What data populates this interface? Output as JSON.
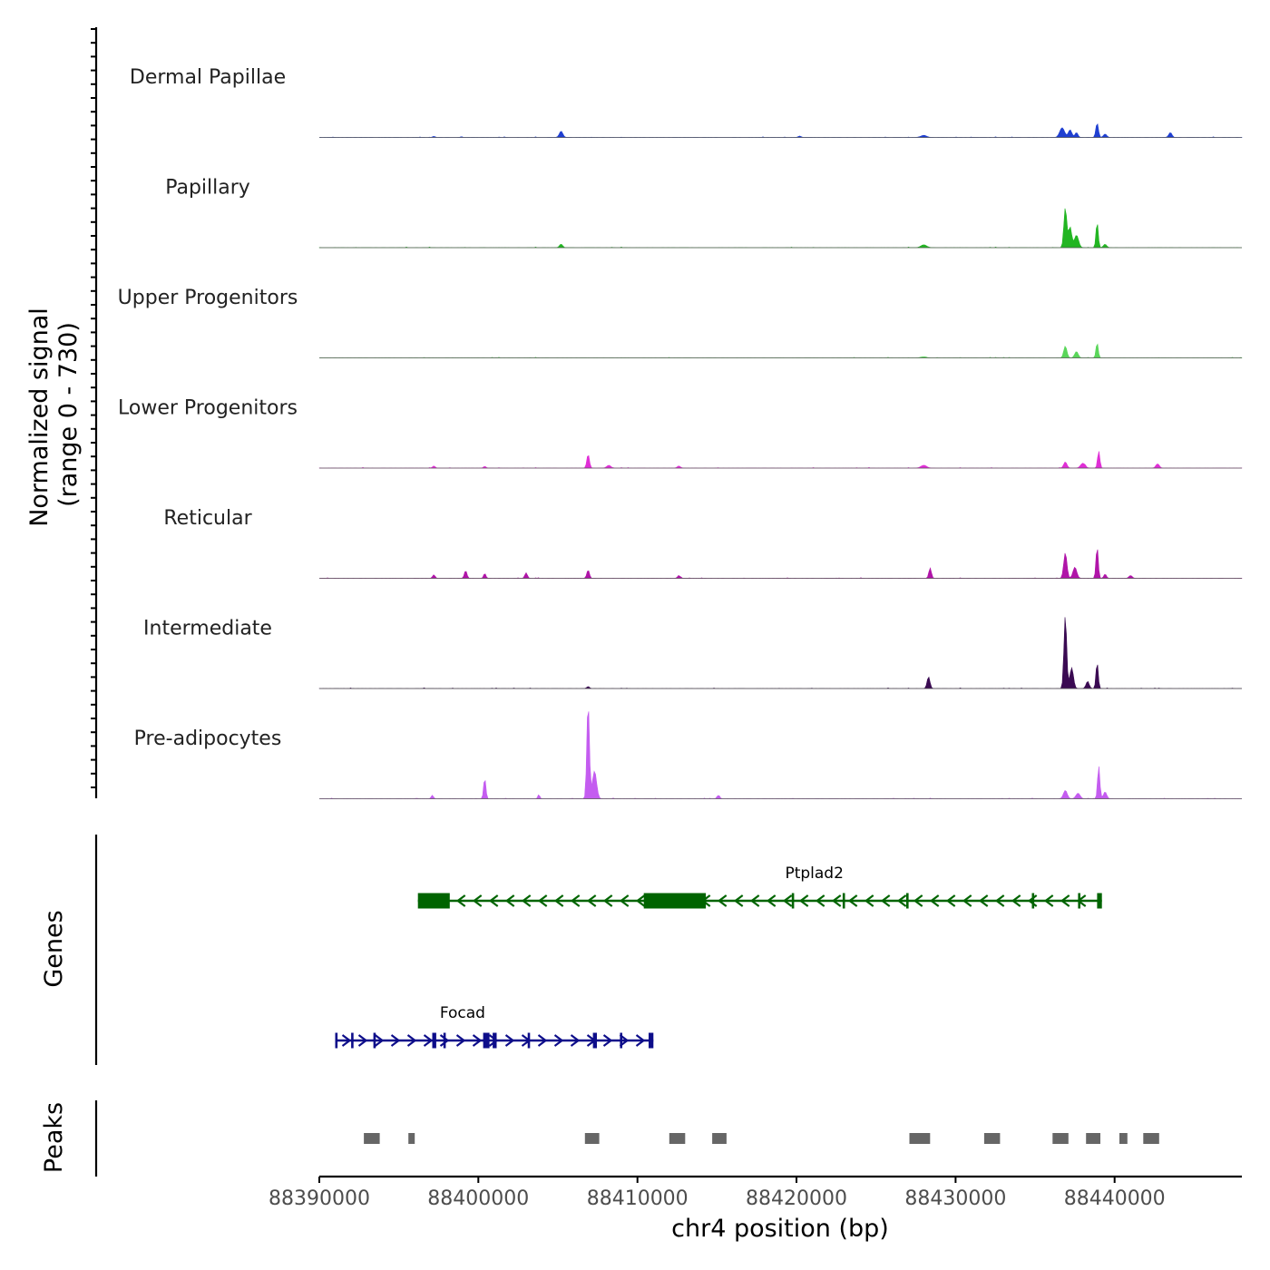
{
  "chart_data": {
    "type": "area",
    "title": "",
    "xlabel": "chr4 position (bp)",
    "xlim": [
      88390000,
      88448000
    ],
    "x_ticks": [
      88390000,
      88400000,
      88410000,
      88420000,
      88430000,
      88440000
    ],
    "x_tick_labels": [
      "88390000",
      "88400000",
      "88410000",
      "88420000",
      "88430000",
      "88440000"
    ],
    "signal": {
      "ylabel_line1": "Normalized signal",
      "ylabel_line2": "(range 0 - 730)",
      "ylim": [
        0,
        730
      ],
      "series": [
        {
          "name": "Dermal Papillae",
          "color": "#1f3fd1",
          "peaks": [
            [
              88397200,
              8,
              80
            ],
            [
              88405200,
              45,
              110
            ],
            [
              88420200,
              10,
              90
            ],
            [
              88428000,
              15,
              180
            ],
            [
              88436700,
              70,
              150
            ],
            [
              88437200,
              55,
              110
            ],
            [
              88437600,
              35,
              90
            ],
            [
              88438900,
              105,
              80
            ],
            [
              88439400,
              25,
              100
            ],
            [
              88443500,
              35,
              100
            ]
          ]
        },
        {
          "name": "Papillary",
          "color": "#22b522",
          "peaks": [
            [
              88405200,
              25,
              100
            ],
            [
              88428000,
              20,
              180
            ],
            [
              88436900,
              290,
              90
            ],
            [
              88437200,
              150,
              100
            ],
            [
              88437600,
              90,
              130
            ],
            [
              88438900,
              185,
              70
            ],
            [
              88439400,
              25,
              100
            ]
          ]
        },
        {
          "name": "Upper Progenitors",
          "color": "#5ad65a",
          "peaks": [
            [
              88428000,
              8,
              180
            ],
            [
              88436900,
              85,
              100
            ],
            [
              88437600,
              45,
              110
            ],
            [
              88438900,
              110,
              70
            ]
          ]
        },
        {
          "name": "Lower Progenitors",
          "color": "#e02ed6",
          "peaks": [
            [
              88397200,
              15,
              80
            ],
            [
              88400400,
              12,
              80
            ],
            [
              88406900,
              100,
              80
            ],
            [
              88408200,
              20,
              130
            ],
            [
              88412600,
              15,
              100
            ],
            [
              88428000,
              20,
              180
            ],
            [
              88436900,
              45,
              100
            ],
            [
              88438000,
              35,
              140
            ],
            [
              88439000,
              125,
              70
            ],
            [
              88442700,
              30,
              110
            ]
          ]
        },
        {
          "name": "Reticular",
          "color": "#b014a8",
          "peaks": [
            [
              88397200,
              25,
              80
            ],
            [
              88399200,
              55,
              80
            ],
            [
              88400400,
              35,
              70
            ],
            [
              88403000,
              40,
              80
            ],
            [
              88406900,
              60,
              80
            ],
            [
              88412600,
              20,
              80
            ],
            [
              88428400,
              75,
              80
            ],
            [
              88436900,
              185,
              100
            ],
            [
              88437500,
              80,
              120
            ],
            [
              88438900,
              230,
              70
            ],
            [
              88439400,
              30,
              80
            ],
            [
              88441000,
              20,
              100
            ]
          ]
        },
        {
          "name": "Intermediate",
          "color": "#3a0a52",
          "peaks": [
            [
              88406900,
              15,
              80
            ],
            [
              88428300,
              85,
              90
            ],
            [
              88436900,
              530,
              85
            ],
            [
              88437300,
              150,
              110
            ],
            [
              88438900,
              190,
              70
            ],
            [
              88438300,
              50,
              100
            ]
          ]
        },
        {
          "name": "Pre-adipocytes",
          "color": "#c45cf0",
          "peaks": [
            [
              88397100,
              25,
              70
            ],
            [
              88400400,
              150,
              70
            ],
            [
              88403800,
              30,
              60
            ],
            [
              88406900,
              700,
              80
            ],
            [
              88407300,
              200,
              130
            ],
            [
              88415100,
              25,
              80
            ],
            [
              88436900,
              60,
              120
            ],
            [
              88437700,
              40,
              130
            ],
            [
              88439000,
              240,
              70
            ],
            [
              88439400,
              50,
              100
            ]
          ]
        }
      ]
    },
    "genes": {
      "ylabel": "Genes",
      "items": [
        {
          "name": "Ptplad2",
          "strand": "-",
          "color": "#006400",
          "start": 88396200,
          "end": 88439200,
          "exons": [
            [
              88396200,
              88398200,
              "utr"
            ],
            [
              88410400,
              88414300,
              "cds"
            ],
            [
              88419700,
              88419850,
              "cds"
            ],
            [
              88422900,
              88423050,
              "cds"
            ],
            [
              88426900,
              88427050,
              "cds"
            ],
            [
              88434800,
              88434950,
              "cds"
            ],
            [
              88437700,
              88437850,
              "cds"
            ],
            [
              88438900,
              88439200,
              "cds"
            ]
          ]
        },
        {
          "name": "Focad",
          "strand": "+",
          "color": "#0d0d8a",
          "start": 88391000,
          "end": 88411000,
          "exons": [
            [
              88391000,
              88391150,
              "cds"
            ],
            [
              88392000,
              88392150,
              "cds"
            ],
            [
              88393400,
              88393550,
              "cds"
            ],
            [
              88397100,
              88397350,
              "cds"
            ],
            [
              88397800,
              88397950,
              "cds"
            ],
            [
              88400300,
              88400700,
              "cds"
            ],
            [
              88400900,
              88401150,
              "cds"
            ],
            [
              88403100,
              88403250,
              "cds"
            ],
            [
              88407200,
              88407450,
              "cds"
            ],
            [
              88408900,
              88409050,
              "cds"
            ],
            [
              88410700,
              88411000,
              "cds"
            ]
          ]
        }
      ]
    },
    "peaks": {
      "ylabel": "Peaks",
      "color": "#666666",
      "regions": [
        [
          88392800,
          88393800
        ],
        [
          88395600,
          88396000
        ],
        [
          88406700,
          88407600
        ],
        [
          88412000,
          88413000
        ],
        [
          88414700,
          88415600
        ],
        [
          88427100,
          88428400
        ],
        [
          88431800,
          88432800
        ],
        [
          88436100,
          88437100
        ],
        [
          88438200,
          88439100
        ],
        [
          88440300,
          88440800
        ],
        [
          88441800,
          88442800
        ]
      ]
    }
  }
}
